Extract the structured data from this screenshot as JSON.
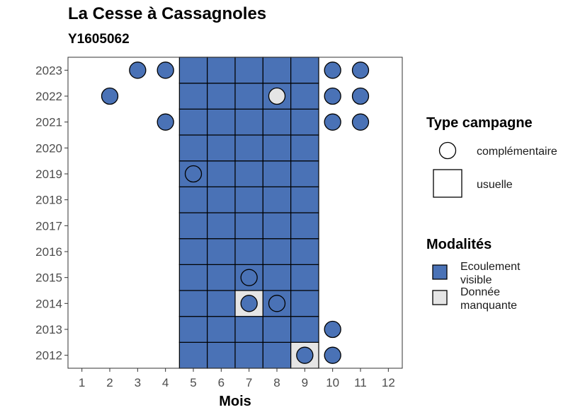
{
  "chart_data": {
    "type": "heatmap",
    "title": "La Cesse à Cassagnoles",
    "subtitle": "Y1605062",
    "xlabel": "Mois",
    "ylabel": "",
    "x_ticks": [
      1,
      2,
      3,
      4,
      5,
      6,
      7,
      8,
      9,
      10,
      11,
      12
    ],
    "y_ticks": [
      2012,
      2013,
      2014,
      2015,
      2016,
      2017,
      2018,
      2019,
      2020,
      2021,
      2022,
      2023
    ],
    "xlim": [
      0.5,
      12.5
    ],
    "ylim": [
      2011.5,
      2023.5
    ],
    "grid": false,
    "legend_position": "right",
    "colors": {
      "ecoulement_visible": "#4a72b6",
      "donnee_manquante": "#e5e5e5"
    },
    "usuelle_months": [
      5,
      6,
      7,
      8,
      9
    ],
    "usuelle_years": [
      2012,
      2013,
      2014,
      2015,
      2016,
      2017,
      2018,
      2019,
      2020,
      2021,
      2022,
      2023
    ],
    "usuelle_missing": [
      {
        "x": 7,
        "y": 2014
      },
      {
        "x": 9,
        "y": 2012
      }
    ],
    "complementaire": [
      {
        "x": 3,
        "y": 2023,
        "modalite": "ecoulement_visible"
      },
      {
        "x": 4,
        "y": 2023,
        "modalite": "ecoulement_visible"
      },
      {
        "x": 10,
        "y": 2023,
        "modalite": "ecoulement_visible"
      },
      {
        "x": 11,
        "y": 2023,
        "modalite": "ecoulement_visible"
      },
      {
        "x": 2,
        "y": 2022,
        "modalite": "ecoulement_visible"
      },
      {
        "x": 8,
        "y": 2022,
        "modalite": "donnee_manquante"
      },
      {
        "x": 10,
        "y": 2022,
        "modalite": "ecoulement_visible"
      },
      {
        "x": 11,
        "y": 2022,
        "modalite": "ecoulement_visible"
      },
      {
        "x": 4,
        "y": 2021,
        "modalite": "ecoulement_visible"
      },
      {
        "x": 10,
        "y": 2021,
        "modalite": "ecoulement_visible"
      },
      {
        "x": 11,
        "y": 2021,
        "modalite": "ecoulement_visible"
      },
      {
        "x": 5,
        "y": 2019,
        "modalite": "ecoulement_visible"
      },
      {
        "x": 7,
        "y": 2015,
        "modalite": "ecoulement_visible"
      },
      {
        "x": 7,
        "y": 2014,
        "modalite": "ecoulement_visible"
      },
      {
        "x": 8,
        "y": 2014,
        "modalite": "ecoulement_visible"
      },
      {
        "x": 10,
        "y": 2013,
        "modalite": "ecoulement_visible"
      },
      {
        "x": 9,
        "y": 2012,
        "modalite": "ecoulement_visible"
      },
      {
        "x": 10,
        "y": 2012,
        "modalite": "ecoulement_visible"
      }
    ],
    "legend": {
      "type_title": "Type campagne",
      "type_items": [
        {
          "key": "complementaire",
          "label": "complémentaire"
        },
        {
          "key": "usuelle",
          "label": "usuelle"
        }
      ],
      "modalite_title": "Modalités",
      "modalite_items": [
        {
          "key": "ecoulement_visible",
          "label_lines": [
            "Ecoulement",
            "visible"
          ]
        },
        {
          "key": "donnee_manquante",
          "label_lines": [
            "Donnée",
            "manquante"
          ]
        }
      ]
    }
  }
}
